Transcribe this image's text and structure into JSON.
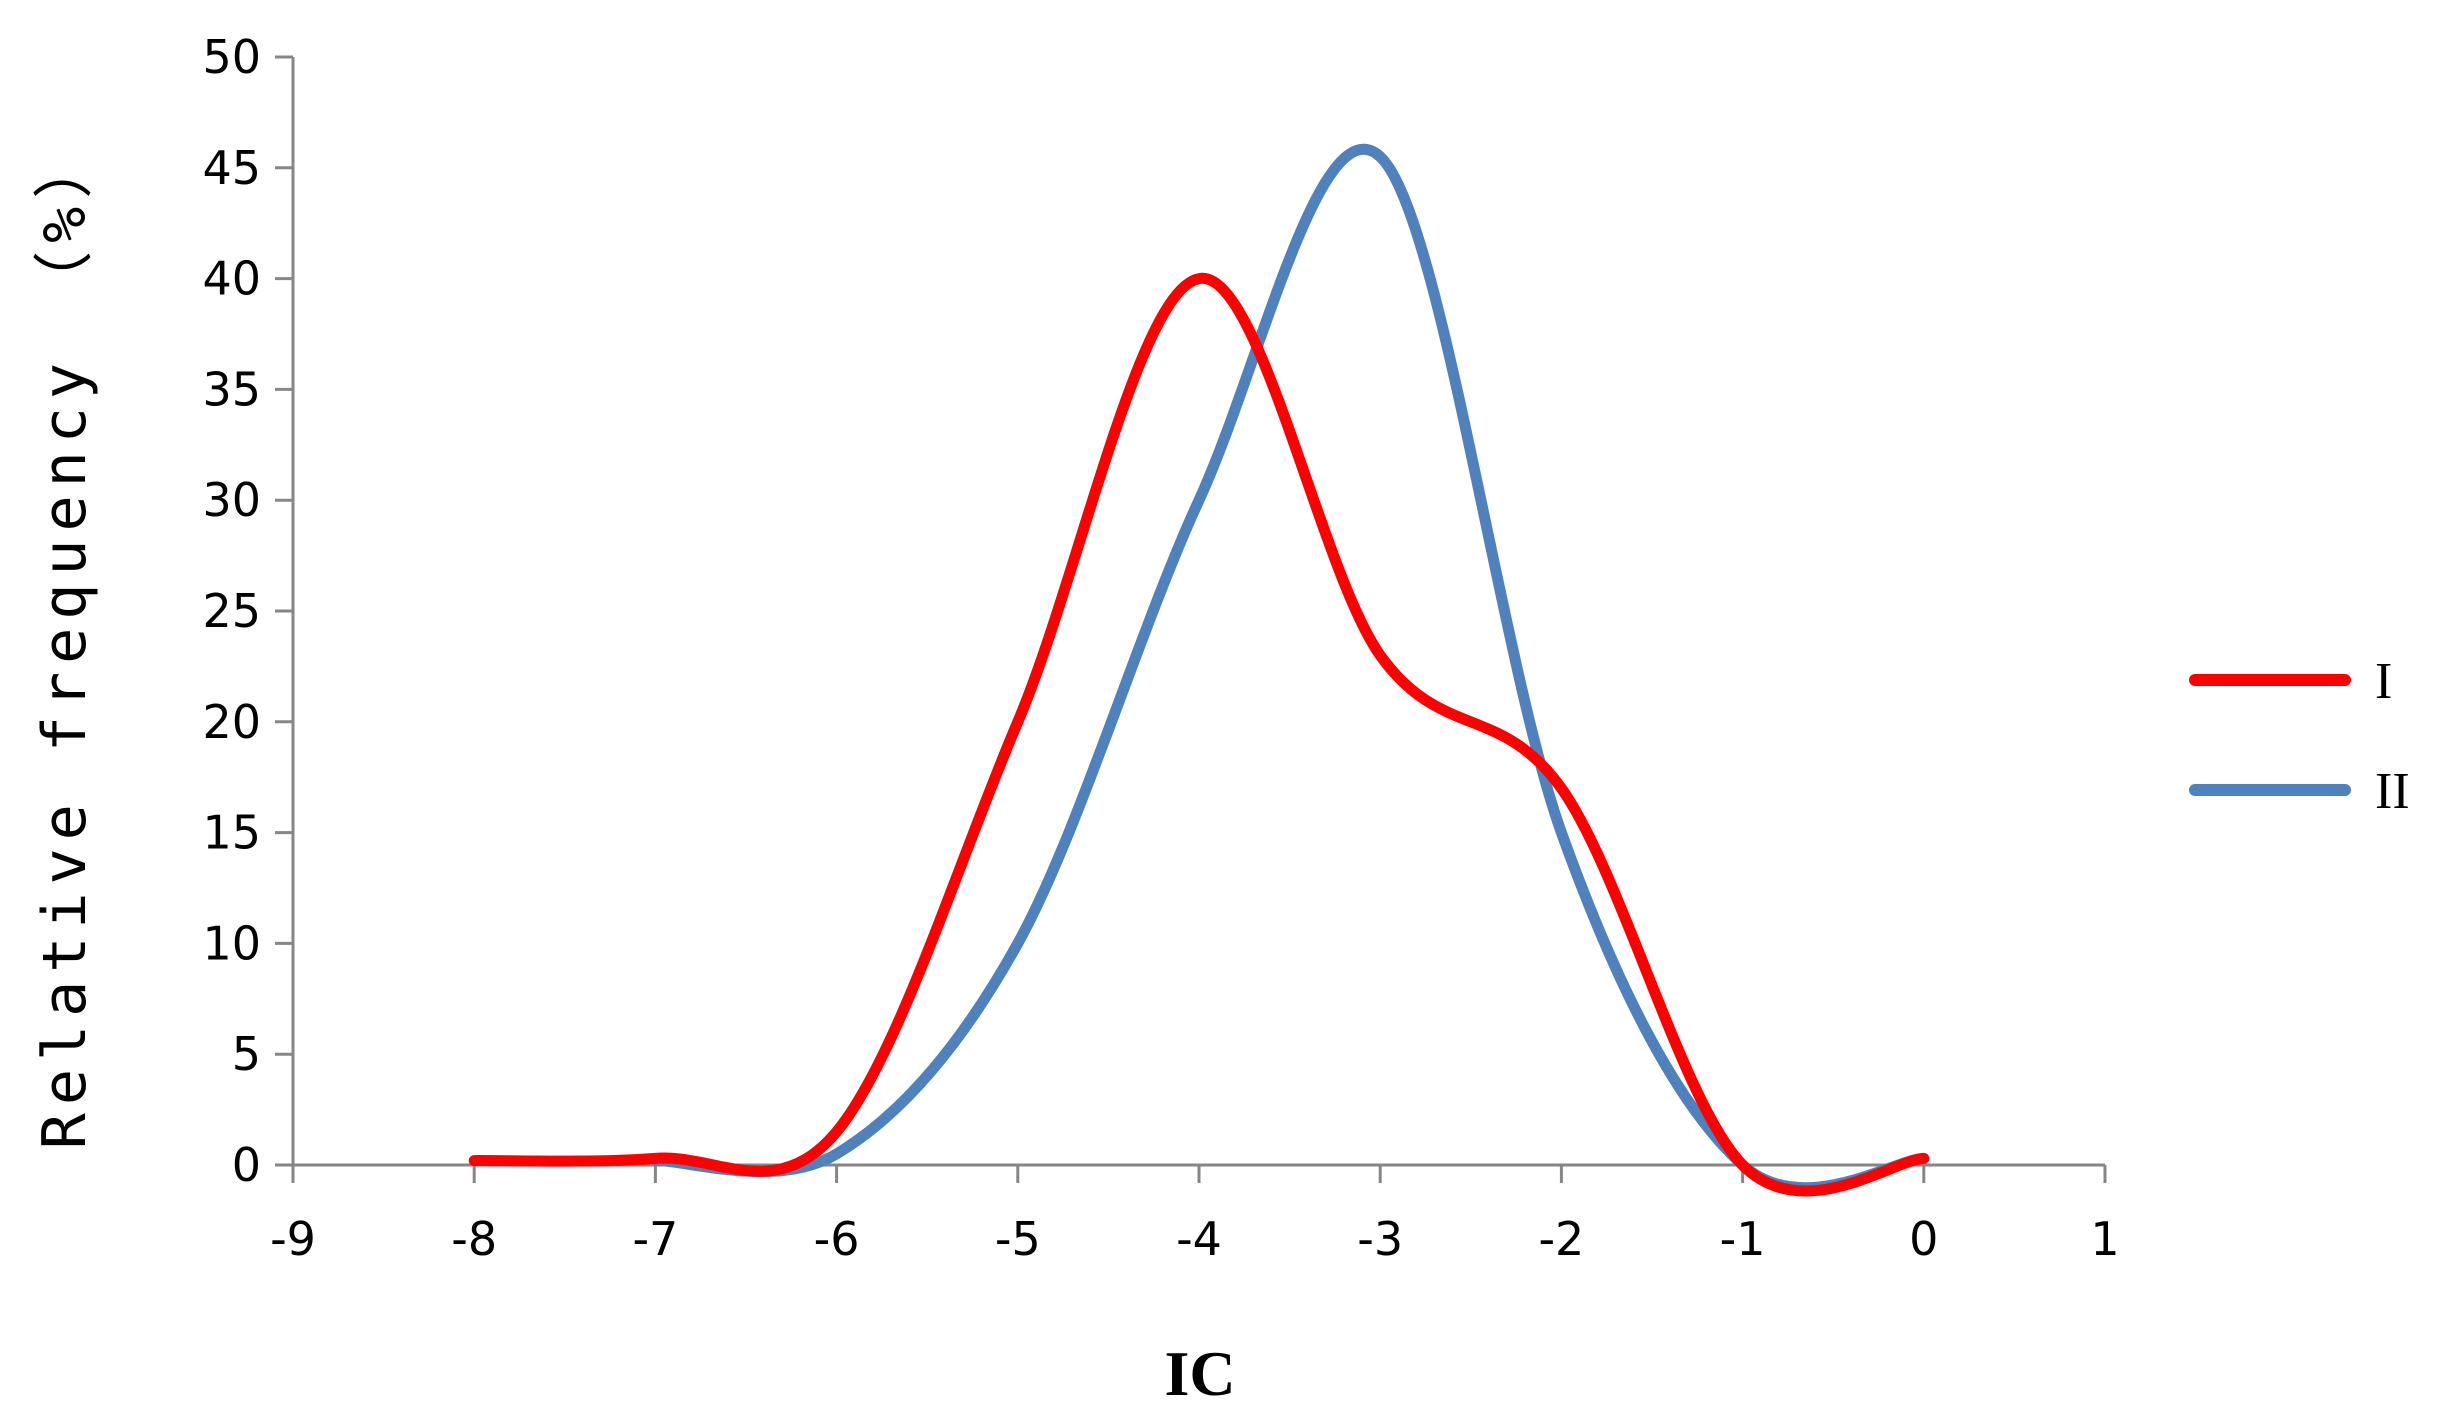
{
  "chart_data": {
    "type": "line",
    "title": "",
    "xlabel": "IC",
    "ylabel": "Relative frequency （%）",
    "xlim": [
      -9,
      1
    ],
    "ylim": [
      0,
      50
    ],
    "x_ticks": [
      "-9",
      "-8",
      "-7",
      "-6",
      "-5",
      "-4",
      "-3",
      "-2",
      "-1",
      "0",
      "1"
    ],
    "y_ticks": [
      "0",
      "5",
      "10",
      "15",
      "20",
      "25",
      "30",
      "35",
      "40",
      "45",
      "50"
    ],
    "grid": false,
    "legend_position": "right",
    "smooth": true,
    "series": [
      {
        "name": "I",
        "color": "#ff0000",
        "x": [
          -8,
          -7,
          -6,
          -5,
          -4,
          -3,
          -2,
          -1,
          0
        ],
        "y": [
          0.2,
          0.3,
          1.5,
          20,
          40,
          23,
          17,
          0,
          0.3
        ]
      },
      {
        "name": "II",
        "color": "#4f81bd",
        "x": [
          -7,
          -6,
          -5,
          -4,
          -3,
          -2,
          -1,
          0
        ],
        "y": [
          0.2,
          0.5,
          10,
          30,
          45.5,
          15,
          0,
          0.3
        ]
      }
    ]
  }
}
